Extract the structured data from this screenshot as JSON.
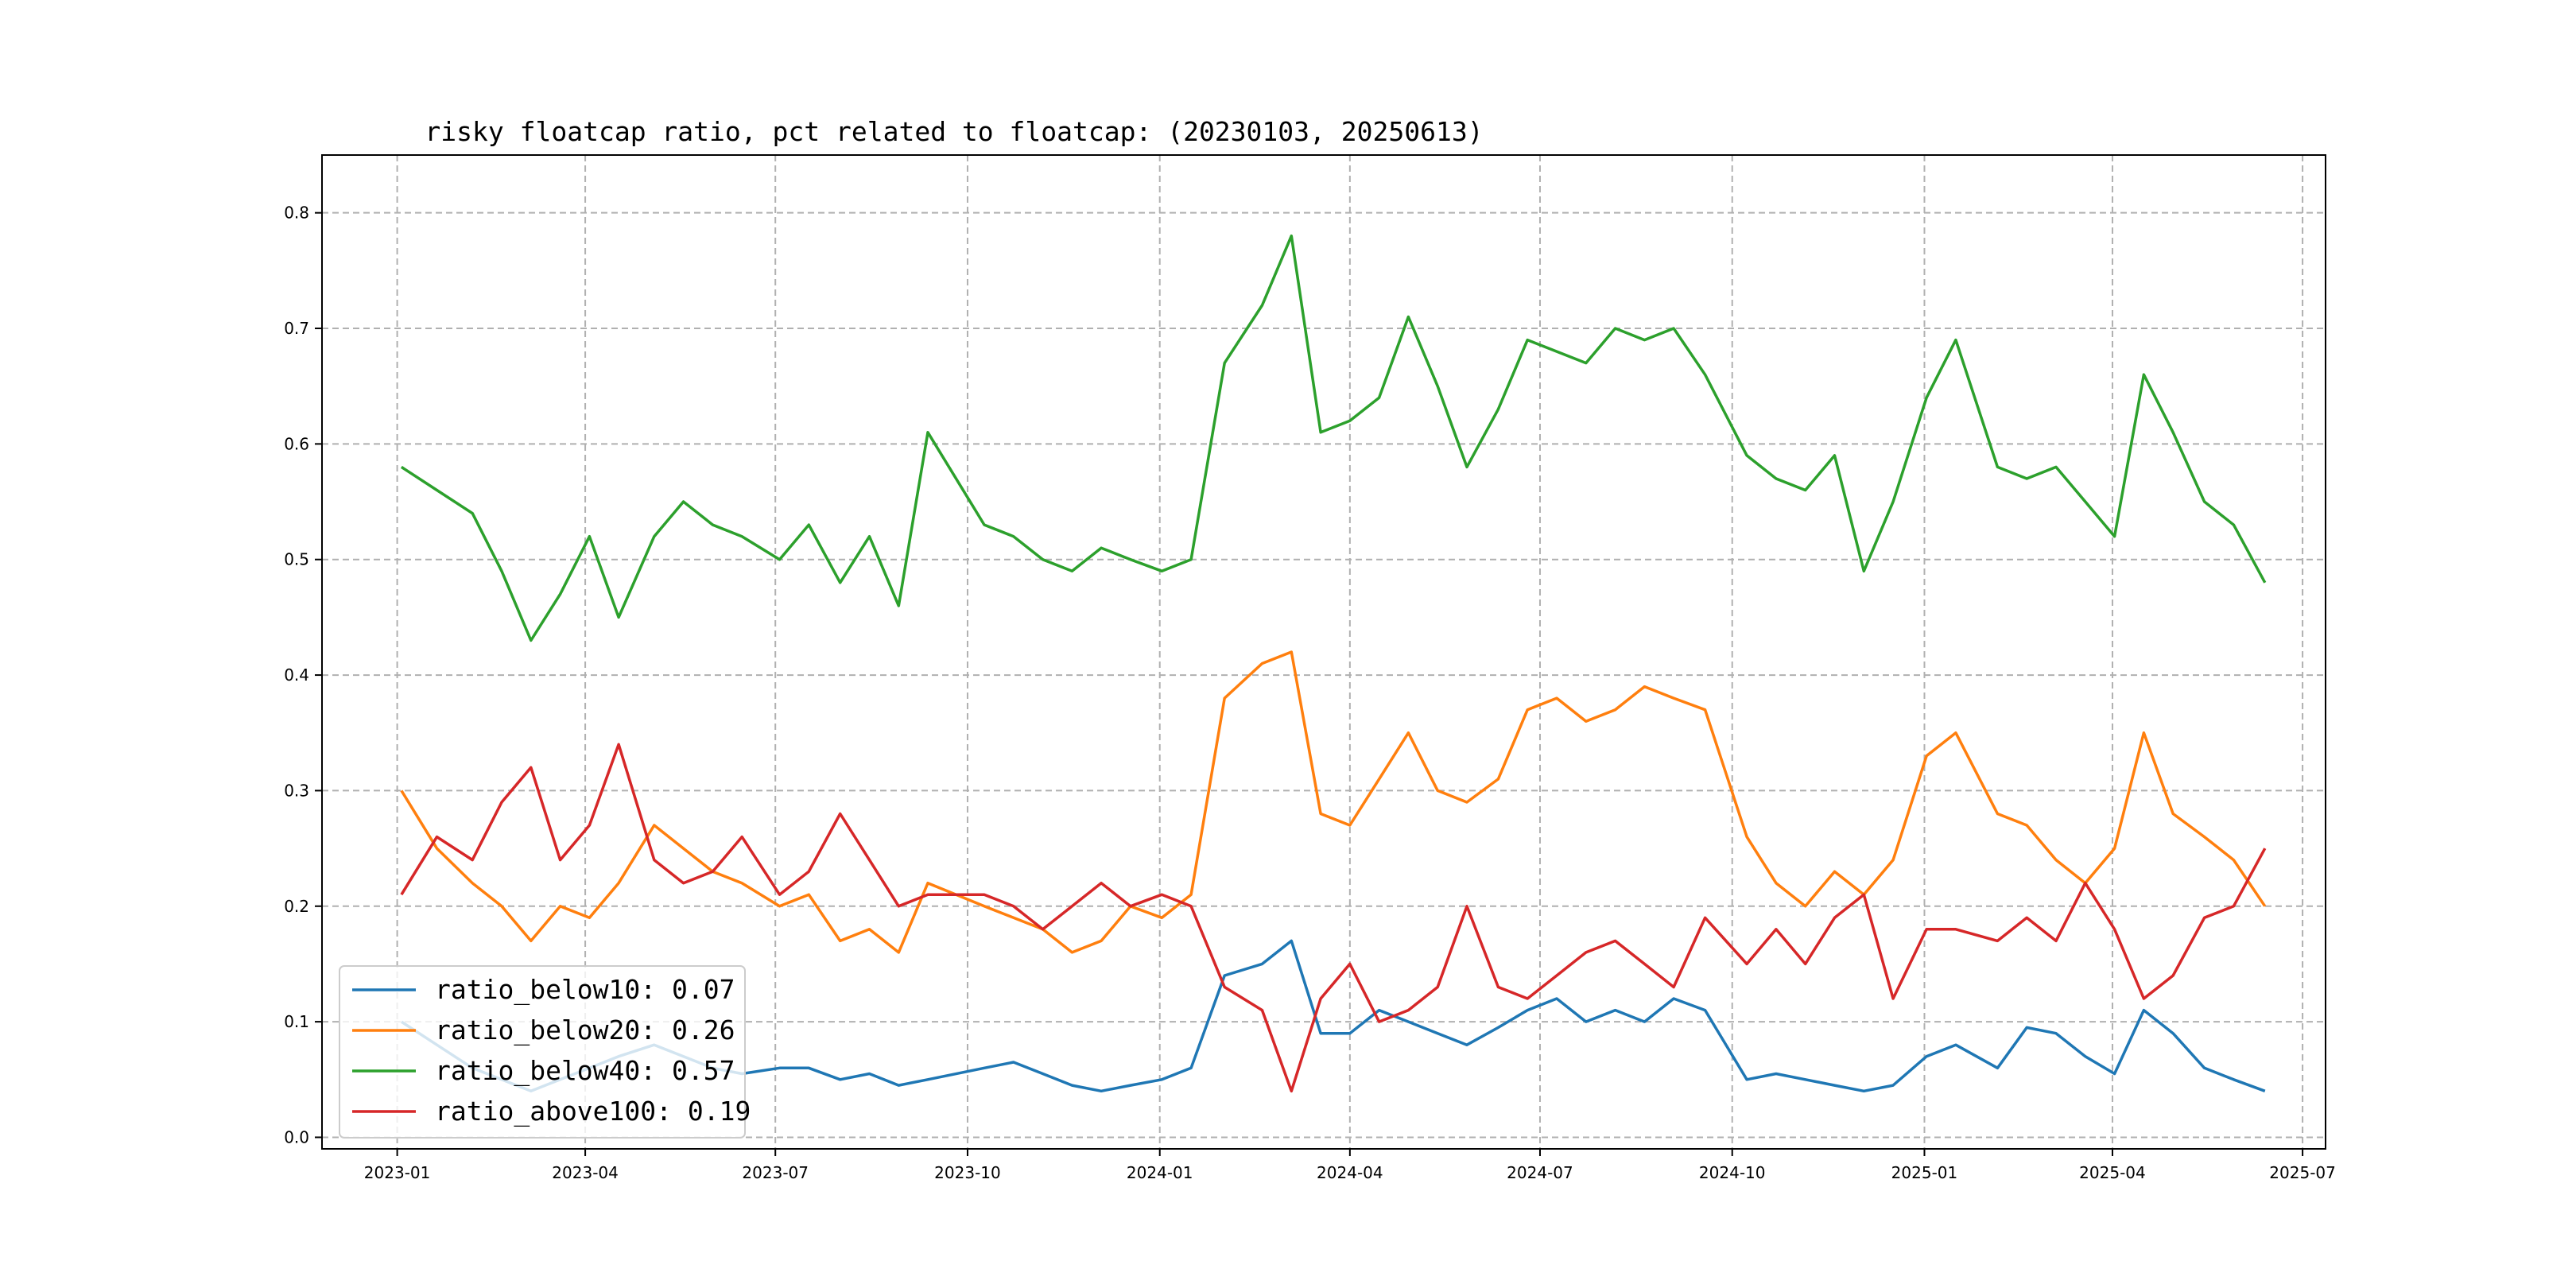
{
  "chart_data": {
    "type": "line",
    "title": "risky floatcap ratio, pct related to floatcap: (20230103, 20250613)",
    "xlabel": "",
    "ylabel": "",
    "x_range": [
      "2022-11-26",
      "2025-07-12"
    ],
    "ylim": [
      -0.01,
      0.85
    ],
    "grid": true,
    "legend_position": "lower-left",
    "x_ticks": [
      {
        "date": "2023-01-01",
        "label": "2023-01"
      },
      {
        "date": "2023-04-01",
        "label": "2023-04"
      },
      {
        "date": "2023-07-01",
        "label": "2023-07"
      },
      {
        "date": "2023-10-01",
        "label": "2023-10"
      },
      {
        "date": "2024-01-01",
        "label": "2024-01"
      },
      {
        "date": "2024-04-01",
        "label": "2024-04"
      },
      {
        "date": "2024-07-01",
        "label": "2024-07"
      },
      {
        "date": "2024-10-01",
        "label": "2024-10"
      },
      {
        "date": "2025-01-01",
        "label": "2025-01"
      },
      {
        "date": "2025-04-01",
        "label": "2025-04"
      },
      {
        "date": "2025-07-01",
        "label": "2025-07"
      }
    ],
    "y_ticks": [
      {
        "value": 0.0,
        "label": "0.0"
      },
      {
        "value": 0.1,
        "label": "0.1"
      },
      {
        "value": 0.2,
        "label": "0.2"
      },
      {
        "value": 0.3,
        "label": "0.3"
      },
      {
        "value": 0.4,
        "label": "0.4"
      },
      {
        "value": 0.5,
        "label": "0.5"
      },
      {
        "value": 0.6,
        "label": "0.6"
      },
      {
        "value": 0.7,
        "label": "0.7"
      },
      {
        "value": 0.8,
        "label": "0.8"
      }
    ],
    "x": [
      "2023-01-03",
      "2023-01-20",
      "2023-02-06",
      "2023-02-20",
      "2023-03-06",
      "2023-03-20",
      "2023-04-03",
      "2023-04-17",
      "2023-05-04",
      "2023-05-18",
      "2023-06-01",
      "2023-06-15",
      "2023-07-03",
      "2023-07-17",
      "2023-08-01",
      "2023-08-15",
      "2023-08-29",
      "2023-09-12",
      "2023-10-09",
      "2023-10-23",
      "2023-11-06",
      "2023-11-20",
      "2023-12-04",
      "2023-12-18",
      "2024-01-02",
      "2024-01-16",
      "2024-02-01",
      "2024-02-19",
      "2024-03-04",
      "2024-03-18",
      "2024-04-01",
      "2024-04-15",
      "2024-04-29",
      "2024-05-13",
      "2024-05-27",
      "2024-06-11",
      "2024-06-25",
      "2024-07-09",
      "2024-07-23",
      "2024-08-06",
      "2024-08-20",
      "2024-09-03",
      "2024-09-18",
      "2024-10-08",
      "2024-10-22",
      "2024-11-05",
      "2024-11-19",
      "2024-12-03",
      "2024-12-17",
      "2025-01-02",
      "2025-01-16",
      "2025-02-05",
      "2025-02-19",
      "2025-03-05",
      "2025-03-19",
      "2025-04-02",
      "2025-04-16",
      "2025-04-30",
      "2025-05-15",
      "2025-05-29",
      "2025-06-13"
    ],
    "series": [
      {
        "name": "ratio_below10",
        "legend_label": "ratio_below10: 0.07",
        "color": "#1f77b4",
        "values": [
          0.1,
          0.08,
          0.06,
          0.05,
          0.04,
          0.05,
          0.06,
          0.07,
          0.08,
          0.07,
          0.06,
          0.055,
          0.06,
          0.06,
          0.05,
          0.055,
          0.045,
          0.05,
          0.06,
          0.065,
          0.055,
          0.045,
          0.04,
          0.045,
          0.05,
          0.06,
          0.14,
          0.15,
          0.17,
          0.09,
          0.09,
          0.11,
          0.1,
          0.09,
          0.08,
          0.095,
          0.11,
          0.12,
          0.1,
          0.11,
          0.1,
          0.12,
          0.11,
          0.05,
          0.055,
          0.05,
          0.045,
          0.04,
          0.045,
          0.07,
          0.08,
          0.06,
          0.095,
          0.09,
          0.07,
          0.055,
          0.11,
          0.09,
          0.06,
          0.05,
          0.04
        ]
      },
      {
        "name": "ratio_below20",
        "legend_label": "ratio_below20: 0.26",
        "color": "#ff7f0e",
        "values": [
          0.3,
          0.25,
          0.22,
          0.2,
          0.17,
          0.2,
          0.19,
          0.22,
          0.27,
          0.25,
          0.23,
          0.22,
          0.2,
          0.21,
          0.17,
          0.18,
          0.16,
          0.22,
          0.2,
          0.19,
          0.18,
          0.16,
          0.17,
          0.2,
          0.19,
          0.21,
          0.38,
          0.41,
          0.42,
          0.28,
          0.27,
          0.31,
          0.35,
          0.3,
          0.29,
          0.31,
          0.37,
          0.38,
          0.36,
          0.37,
          0.39,
          0.38,
          0.37,
          0.26,
          0.22,
          0.2,
          0.23,
          0.21,
          0.24,
          0.33,
          0.35,
          0.28,
          0.27,
          0.24,
          0.22,
          0.25,
          0.35,
          0.28,
          0.26,
          0.24,
          0.2
        ]
      },
      {
        "name": "ratio_below40",
        "legend_label": "ratio_below40: 0.57",
        "color": "#2ca02c",
        "values": [
          0.58,
          0.56,
          0.54,
          0.49,
          0.43,
          0.47,
          0.52,
          0.45,
          0.52,
          0.55,
          0.53,
          0.52,
          0.5,
          0.53,
          0.48,
          0.52,
          0.46,
          0.61,
          0.53,
          0.52,
          0.5,
          0.49,
          0.51,
          0.5,
          0.49,
          0.5,
          0.67,
          0.72,
          0.78,
          0.61,
          0.62,
          0.64,
          0.71,
          0.65,
          0.58,
          0.63,
          0.69,
          0.68,
          0.67,
          0.7,
          0.69,
          0.7,
          0.66,
          0.59,
          0.57,
          0.56,
          0.59,
          0.49,
          0.55,
          0.64,
          0.69,
          0.58,
          0.57,
          0.58,
          0.55,
          0.52,
          0.66,
          0.61,
          0.55,
          0.53,
          0.48
        ]
      },
      {
        "name": "ratio_above100",
        "legend_label": "ratio_above100: 0.19",
        "color": "#d62728",
        "values": [
          0.21,
          0.26,
          0.24,
          0.29,
          0.32,
          0.24,
          0.27,
          0.34,
          0.24,
          0.22,
          0.23,
          0.26,
          0.21,
          0.23,
          0.28,
          0.24,
          0.2,
          0.21,
          0.21,
          0.2,
          0.18,
          0.2,
          0.22,
          0.2,
          0.21,
          0.2,
          0.13,
          0.11,
          0.04,
          0.12,
          0.15,
          0.1,
          0.11,
          0.13,
          0.2,
          0.13,
          0.12,
          0.14,
          0.16,
          0.17,
          0.15,
          0.13,
          0.19,
          0.15,
          0.18,
          0.15,
          0.19,
          0.21,
          0.12,
          0.18,
          0.18,
          0.17,
          0.19,
          0.17,
          0.22,
          0.18,
          0.12,
          0.14,
          0.19,
          0.2,
          0.25
        ]
      }
    ]
  }
}
